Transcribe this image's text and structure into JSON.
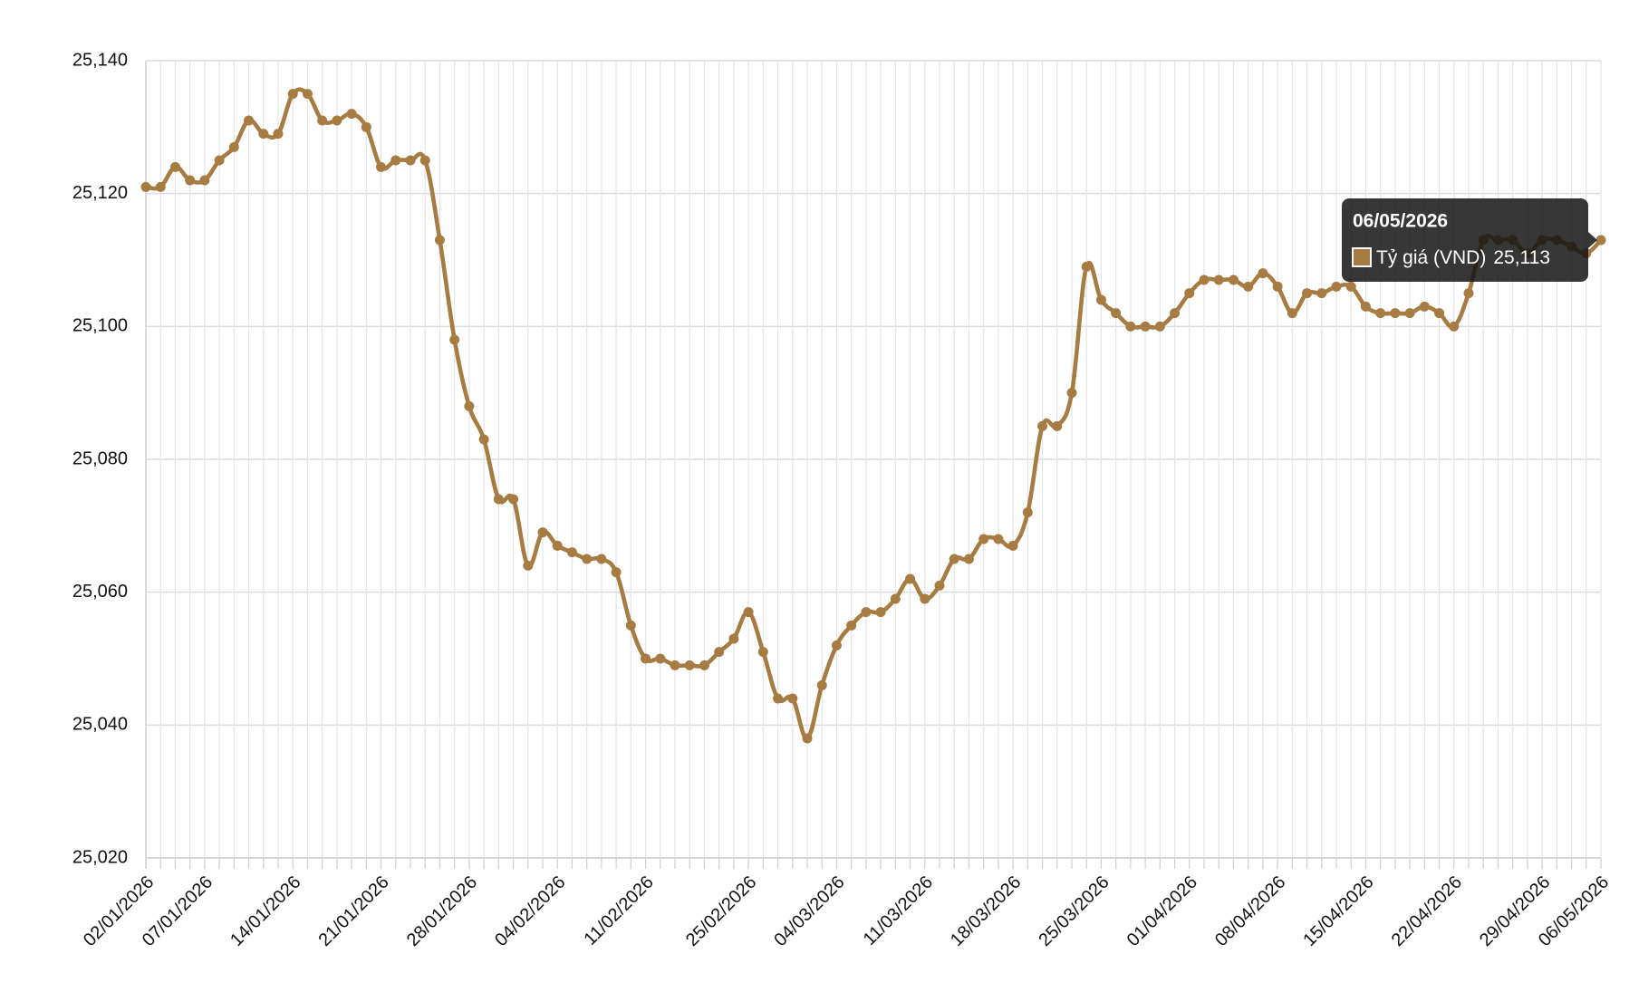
{
  "chart_data": {
    "type": "line",
    "categories": [
      "02/01/2026",
      null,
      null,
      null,
      "07/01/2026",
      null,
      null,
      null,
      null,
      null,
      "14/01/2026",
      null,
      null,
      null,
      null,
      null,
      "21/01/2026",
      null,
      null,
      null,
      null,
      null,
      "28/01/2026",
      null,
      null,
      null,
      null,
      null,
      "04/02/2026",
      null,
      null,
      null,
      null,
      null,
      "11/02/2026",
      null,
      null,
      null,
      null,
      null,
      null,
      "25/02/2026",
      null,
      null,
      null,
      null,
      null,
      "04/03/2026",
      null,
      null,
      null,
      null,
      null,
      "11/03/2026",
      null,
      null,
      null,
      null,
      null,
      "18/03/2026",
      null,
      null,
      null,
      null,
      null,
      "25/03/2026",
      null,
      null,
      null,
      null,
      null,
      "01/04/2026",
      null,
      null,
      null,
      null,
      null,
      "08/04/2026",
      null,
      null,
      null,
      null,
      null,
      "15/04/2026",
      null,
      null,
      null,
      null,
      null,
      "22/04/2026",
      null,
      null,
      null,
      null,
      null,
      "29/04/2026",
      null,
      null,
      null,
      "06/05/2026"
    ],
    "series": [
      {
        "name": "Tỷ giá (VND)",
        "color": "#a67c42",
        "values": [
          25121,
          25121,
          25124,
          25122,
          25122,
          25125,
          25127,
          25131,
          25129,
          25129,
          25135,
          25135,
          25131,
          25131,
          25132,
          25130,
          25124,
          25125,
          25125,
          25125,
          25113,
          25098,
          25088,
          25083,
          25074,
          25074,
          25064,
          25069,
          25067,
          25066,
          25065,
          25065,
          25063,
          25055,
          25050,
          25050,
          25049,
          25049,
          25049,
          25051,
          25053,
          25057,
          25051,
          25044,
          25044,
          25038,
          25046,
          25052,
          25055,
          25057,
          25057,
          25059,
          25062,
          25059,
          25061,
          25065,
          25065,
          25068,
          25068,
          25067,
          25072,
          25085,
          25085,
          25090,
          25109,
          25104,
          25102,
          25100,
          25100,
          25100,
          25102,
          25105,
          25107,
          25107,
          25107,
          25106,
          25108,
          25106,
          25102,
          25105,
          25105,
          25106,
          25106,
          25103,
          25102,
          25102,
          25102,
          25103,
          25102,
          25100,
          25105,
          25113,
          25113,
          25113,
          25111,
          25113,
          25113,
          25112,
          25111,
          25113
        ],
        "value_labels": [
          null,
          null,
          null,
          null,
          null,
          null,
          null,
          null,
          null,
          null,
          null,
          null,
          null,
          null,
          null,
          null,
          null,
          null,
          null,
          null,
          null,
          null,
          null,
          null,
          null,
          null,
          null,
          null,
          null,
          null,
          null,
          null,
          null,
          null,
          null,
          null,
          null,
          null,
          null,
          null,
          null,
          null,
          null,
          null,
          null,
          null,
          null,
          null,
          null,
          null,
          null,
          null,
          null,
          null,
          null,
          null,
          null,
          null,
          null,
          null,
          null,
          null,
          null,
          null,
          null,
          null,
          null,
          null,
          null,
          null,
          null,
          null,
          null,
          null,
          null,
          null,
          null,
          null,
          null,
          null,
          null,
          null,
          null,
          null,
          null,
          null,
          null,
          null,
          null,
          null,
          null,
          null,
          null,
          null,
          null,
          null,
          null,
          null,
          null,
          "25,113"
        ]
      }
    ],
    "ylim": [
      25020,
      25140
    ],
    "yticks": [
      {
        "value": 25020,
        "label": "25,020"
      },
      {
        "value": 25040,
        "label": "25,040"
      },
      {
        "value": 25060,
        "label": "25,060"
      },
      {
        "value": 25080,
        "label": "25,080"
      },
      {
        "value": 25100,
        "label": "25,100"
      },
      {
        "value": 25120,
        "label": "25,120"
      },
      {
        "value": 25140,
        "label": "25,140"
      }
    ],
    "grid": true
  }
}
